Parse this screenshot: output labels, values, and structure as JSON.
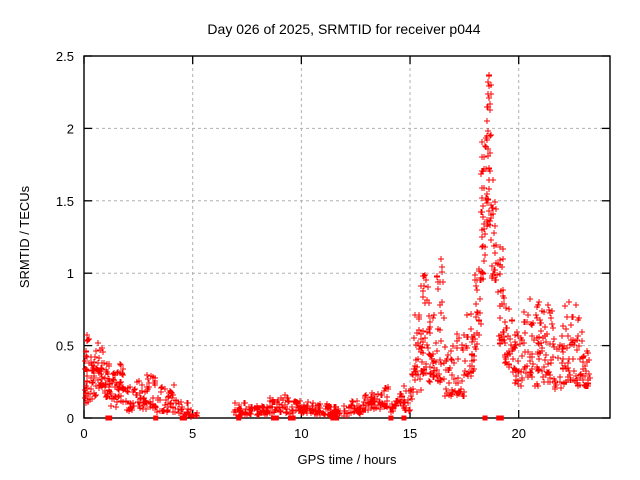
{
  "title": "Day 026 of 2025, SRMTID for receiver p044",
  "chart_data": {
    "type": "scatter",
    "title": "Day 026 of 2025, SRMTID for receiver p044",
    "xlabel": "GPS time / hours",
    "ylabel": "SRMTID / TECUs",
    "xlim": [
      0,
      24.2
    ],
    "ylim": [
      0,
      2.5
    ],
    "xticks": [
      0,
      5,
      10,
      15,
      20
    ],
    "yticks": [
      0,
      0.5,
      1,
      1.5,
      2,
      2.5
    ],
    "grid": true,
    "legend": "none",
    "marker": "plus",
    "marker_color": "#ff0000",
    "grid_color": "#b0b0b0",
    "border_color": "#000000",
    "background_color": "#ffffff",
    "max_point": {
      "x": 18.62,
      "y": 2.37
    },
    "data_gaps_hours": [
      [
        5.2,
        6.9
      ]
    ],
    "data_end_hour": 23.35,
    "seed": 1337,
    "band_segments_comment": "each segment = [x_start_hr, x_end_hr, n_points, y_low_TECU, y_high_TECU, low_bias_exponent] describing the dense noisy scatter band read from the plot",
    "segments": [
      [
        0.03,
        0.25,
        30,
        0.1,
        0.57,
        1.2
      ],
      [
        0.25,
        0.6,
        26,
        0.13,
        0.5,
        1.3
      ],
      [
        0.6,
        0.9,
        24,
        0.2,
        0.52,
        1.1
      ],
      [
        0.9,
        1.2,
        26,
        0.14,
        0.42,
        1.1
      ],
      [
        1.2,
        1.6,
        24,
        0.07,
        0.32,
        1.3
      ],
      [
        1.6,
        1.9,
        20,
        0.09,
        0.37,
        1.2
      ],
      [
        1.9,
        2.4,
        24,
        0.05,
        0.22,
        1.3
      ],
      [
        2.4,
        2.9,
        24,
        0.06,
        0.27,
        1.3
      ],
      [
        2.9,
        3.35,
        26,
        0.07,
        0.3,
        1.3
      ],
      [
        3.35,
        3.9,
        24,
        0.04,
        0.22,
        1.4
      ],
      [
        3.9,
        4.2,
        14,
        0.04,
        0.25,
        1.5
      ],
      [
        4.2,
        4.8,
        20,
        0.02,
        0.13,
        1.4
      ],
      [
        4.8,
        5.2,
        12,
        0.01,
        0.06,
        1.2
      ],
      [
        6.9,
        7.4,
        22,
        0.02,
        0.11,
        1.3
      ],
      [
        7.4,
        8.5,
        45,
        0.02,
        0.09,
        1.2
      ],
      [
        8.5,
        9.4,
        38,
        0.03,
        0.14,
        1.3
      ],
      [
        9.4,
        10.6,
        50,
        0.03,
        0.12,
        1.3
      ],
      [
        10.6,
        11.3,
        30,
        0.02,
        0.1,
        1.3
      ],
      [
        11.3,
        12.2,
        35,
        0.01,
        0.08,
        1.2
      ],
      [
        12.2,
        12.9,
        30,
        0.03,
        0.12,
        1.2
      ],
      [
        12.9,
        13.6,
        30,
        0.05,
        0.17,
        1.2
      ],
      [
        13.6,
        14.1,
        22,
        0.06,
        0.22,
        1.3
      ],
      [
        14.1,
        14.45,
        15,
        0.03,
        0.12,
        1.2
      ],
      [
        14.45,
        14.75,
        16,
        0.07,
        0.26,
        1.2
      ],
      [
        14.75,
        15.1,
        15,
        0.05,
        0.2,
        1.2
      ],
      [
        15.1,
        15.5,
        32,
        0.18,
        0.74,
        1.4
      ],
      [
        15.5,
        15.85,
        30,
        0.3,
        1.0,
        1.5
      ],
      [
        15.85,
        16.2,
        28,
        0.25,
        0.82,
        1.4
      ],
      [
        16.2,
        16.55,
        26,
        0.25,
        1.05,
        1.5
      ],
      [
        16.55,
        17.1,
        28,
        0.15,
        0.55,
        1.3
      ],
      [
        17.1,
        17.55,
        26,
        0.15,
        0.6,
        1.3
      ],
      [
        17.55,
        17.95,
        26,
        0.28,
        0.72,
        1.3
      ],
      [
        17.95,
        18.25,
        24,
        0.45,
        1.05,
        1.2
      ],
      [
        18.25,
        18.55,
        36,
        0.95,
        2.1,
        1.3
      ],
      [
        18.5,
        18.75,
        30,
        1.3,
        2.37,
        1.2
      ],
      [
        18.7,
        19.0,
        26,
        0.95,
        1.75,
        1.3
      ],
      [
        19.0,
        19.35,
        26,
        0.5,
        1.2,
        1.3
      ],
      [
        19.35,
        19.75,
        26,
        0.35,
        0.8,
        1.3
      ],
      [
        19.75,
        20.2,
        28,
        0.22,
        0.6,
        1.3
      ],
      [
        20.2,
        20.7,
        30,
        0.28,
        0.75,
        1.4
      ],
      [
        20.7,
        21.1,
        28,
        0.2,
        0.8,
        1.4
      ],
      [
        21.1,
        21.6,
        30,
        0.25,
        0.75,
        1.4
      ],
      [
        21.6,
        22.1,
        30,
        0.2,
        0.65,
        1.3
      ],
      [
        22.1,
        22.6,
        30,
        0.25,
        0.78,
        1.4
      ],
      [
        22.6,
        23.0,
        26,
        0.22,
        0.7,
        1.4
      ],
      [
        23.0,
        23.35,
        20,
        0.22,
        0.5,
        1.2
      ]
    ],
    "notable_points": [
      [
        18.62,
        2.37
      ],
      [
        18.6,
        2.32
      ],
      [
        18.65,
        2.29
      ],
      [
        18.57,
        2.24
      ],
      [
        18.63,
        2.21
      ],
      [
        18.68,
        2.17
      ],
      [
        18.55,
        2.05
      ],
      [
        18.6,
        1.98
      ],
      [
        18.52,
        1.92
      ],
      [
        18.58,
        1.86
      ],
      [
        15.7,
        0.99
      ],
      [
        15.73,
        0.95
      ],
      [
        15.66,
        0.91
      ],
      [
        16.42,
        1.1
      ],
      [
        16.45,
        1.04
      ],
      [
        16.38,
        0.94
      ],
      [
        16.3,
        0.89
      ],
      [
        0.15,
        0.57
      ],
      [
        0.18,
        0.54
      ],
      [
        0.65,
        0.52
      ],
      [
        9.25,
        0.16
      ],
      [
        9.32,
        0.14
      ],
      [
        20.52,
        0.82
      ],
      [
        20.95,
        0.8
      ],
      [
        21.35,
        0.78
      ],
      [
        22.3,
        0.8
      ],
      [
        22.65,
        0.78
      ],
      [
        21.55,
        0.74
      ],
      [
        19.15,
        1.18
      ],
      [
        19.3,
        1.1
      ]
    ],
    "zero_flag_points_x": [
      1.1,
      1.18,
      3.3,
      4.52,
      4.62,
      7.12,
      8.72,
      8.85,
      9.5,
      9.62,
      11.45,
      11.62,
      14.12,
      14.72,
      18.45,
      19.08,
      19.2
    ]
  }
}
